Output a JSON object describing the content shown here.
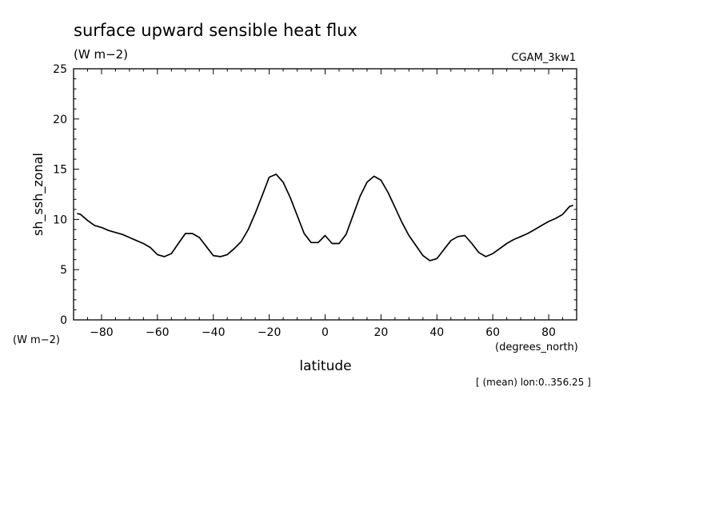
{
  "chart_data": {
    "type": "line",
    "title": "surface upward sensible heat flux",
    "units": "(W m−2)",
    "run_label": "CGAM_3kw1",
    "xlabel": "latitude",
    "x_units": "(degrees_north)",
    "ylabel": "sh_ssh_zonal",
    "y_units": "(W m−2)",
    "footnote": "[ (mean) lon:0..356.25 ]",
    "xlim": [
      -90,
      90
    ],
    "ylim": [
      0,
      25
    ],
    "x_ticks": [
      -80,
      -60,
      -40,
      -20,
      0,
      20,
      40,
      60,
      80
    ],
    "x_tick_labels": [
      "−80",
      "−60",
      "−40",
      "−20",
      "0",
      "20",
      "40",
      "60",
      "80"
    ],
    "y_ticks": [
      0,
      5,
      10,
      15,
      20,
      25
    ],
    "y_tick_labels": [
      "0",
      "5",
      "10",
      "15",
      "20",
      "25"
    ],
    "grid": false,
    "line_color": "#000000",
    "series": [
      {
        "x": [
          -88.75,
          -87.5,
          -85,
          -82.5,
          -80,
          -77.5,
          -75,
          -72.5,
          -70,
          -67.5,
          -65,
          -62.5,
          -60,
          -57.5,
          -55,
          -52.5,
          -50,
          -47.5,
          -45,
          -42.5,
          -40,
          -37.5,
          -35,
          -32.5,
          -30,
          -27.5,
          -25,
          -22.5,
          -20,
          -17.5,
          -15,
          -12.5,
          -10,
          -7.5,
          -5,
          -2.5,
          0,
          2.5,
          5,
          7.5,
          10,
          12.5,
          15,
          17.5,
          20,
          22.5,
          25,
          27.5,
          30,
          32.5,
          35,
          37.5,
          40,
          42.5,
          45,
          47.5,
          50,
          52.5,
          55,
          57.5,
          60,
          62.5,
          65,
          67.5,
          70,
          72.5,
          75,
          77.5,
          80,
          82.5,
          85,
          87.5,
          88.75
        ],
        "y": [
          10.6,
          10.5,
          9.9,
          9.4,
          9.2,
          8.9,
          8.7,
          8.5,
          8.2,
          7.9,
          7.6,
          7.2,
          6.5,
          6.3,
          6.6,
          7.6,
          8.6,
          8.6,
          8.2,
          7.3,
          6.4,
          6.3,
          6.5,
          7.1,
          7.8,
          9.0,
          10.6,
          12.4,
          14.2,
          14.5,
          13.7,
          12.2,
          10.4,
          8.6,
          7.7,
          7.7,
          8.4,
          7.6,
          7.6,
          8.5,
          10.4,
          12.3,
          13.7,
          14.3,
          13.9,
          12.7,
          11.2,
          9.7,
          8.4,
          7.4,
          6.4,
          5.9,
          6.1,
          7.0,
          7.9,
          8.3,
          8.4,
          7.6,
          6.7,
          6.3,
          6.6,
          7.1,
          7.6,
          8.0,
          8.3,
          8.6,
          9.0,
          9.4,
          9.8,
          10.1,
          10.5,
          11.3,
          11.4
        ]
      }
    ]
  }
}
